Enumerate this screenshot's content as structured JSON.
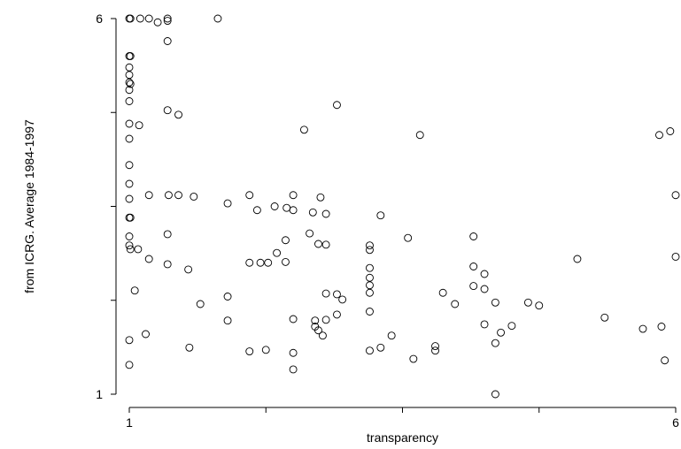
{
  "chart_data": {
    "type": "scatter",
    "title": "",
    "xlabel": "transparency",
    "ylabel": "from ICRG. Average 1984-1997",
    "xlim": [
      1,
      6
    ],
    "ylim": [
      1,
      6
    ],
    "x_tick_labels": [
      "1",
      "",
      "",
      "",
      "6"
    ],
    "x_tick_values": [
      1,
      2.25,
      3.5,
      4.75,
      6
    ],
    "y_tick_labels": [
      "1",
      "",
      "",
      "",
      "6"
    ],
    "y_tick_values": [
      1,
      2.25,
      3.5,
      4.75,
      6
    ],
    "grid": false,
    "legend": "none",
    "marker": "hollow-circle",
    "points": [
      [
        1,
        6
      ],
      [
        1.01,
        6
      ],
      [
        1.1,
        6
      ],
      [
        1.18,
        6
      ],
      [
        1.26,
        5.95
      ],
      [
        1.35,
        6
      ],
      [
        1.35,
        5.97
      ],
      [
        1.35,
        5.7
      ],
      [
        1.81,
        6
      ],
      [
        1,
        5.5
      ],
      [
        1.01,
        5.5
      ],
      [
        1,
        5.35
      ],
      [
        1,
        5.25
      ],
      [
        1,
        5.15
      ],
      [
        1.01,
        5.13
      ],
      [
        1,
        5.05
      ],
      [
        1,
        4.9
      ],
      [
        1,
        4.6
      ],
      [
        1,
        4.4
      ],
      [
        1.09,
        4.58
      ],
      [
        1.35,
        4.78
      ],
      [
        1.45,
        4.72
      ],
      [
        1,
        4.05
      ],
      [
        1,
        3.8
      ],
      [
        1,
        3.6
      ],
      [
        1,
        3.35
      ],
      [
        1.01,
        3.35
      ],
      [
        1,
        3.1
      ],
      [
        1,
        2.98
      ],
      [
        1.01,
        2.93
      ],
      [
        1.08,
        2.93
      ],
      [
        1.18,
        2.8
      ],
      [
        1.18,
        3.65
      ],
      [
        1.36,
        3.65
      ],
      [
        1.45,
        3.65
      ],
      [
        1.59,
        3.63
      ],
      [
        1.35,
        3.13
      ],
      [
        1.35,
        2.73
      ],
      [
        1.54,
        2.66
      ],
      [
        1.9,
        3.54
      ],
      [
        2.1,
        3.65
      ],
      [
        2.17,
        3.45
      ],
      [
        2.33,
        3.5
      ],
      [
        2.44,
        3.48
      ],
      [
        2.5,
        3.45
      ],
      [
        2.5,
        3.65
      ],
      [
        2.6,
        4.52
      ],
      [
        2.65,
        3.14
      ],
      [
        2.68,
        3.42
      ],
      [
        2.8,
        3.4
      ],
      [
        2.9,
        4.85
      ],
      [
        2.75,
        3.62
      ],
      [
        2.1,
        2.75
      ],
      [
        2.2,
        2.75
      ],
      [
        2.27,
        2.75
      ],
      [
        2.35,
        2.88
      ],
      [
        2.43,
        3.05
      ],
      [
        2.43,
        2.76
      ],
      [
        1.9,
        2.3
      ],
      [
        1.9,
        1.98
      ],
      [
        2.73,
        3.0
      ],
      [
        2.8,
        2.99
      ],
      [
        2.8,
        2.34
      ],
      [
        2.9,
        2.33
      ],
      [
        2.95,
        2.26
      ],
      [
        3.2,
        2.98
      ],
      [
        3.2,
        2.92
      ],
      [
        3.2,
        2.68
      ],
      [
        3.2,
        2.55
      ],
      [
        3.2,
        2.45
      ],
      [
        3.2,
        2.35
      ],
      [
        3.3,
        3.38
      ],
      [
        3.55,
        3.08
      ],
      [
        3.66,
        4.45
      ],
      [
        3.2,
        2.1
      ],
      [
        2.9,
        2.06
      ],
      [
        2.8,
        1.99
      ],
      [
        2.7,
        1.98
      ],
      [
        2.7,
        1.9
      ],
      [
        2.73,
        1.85
      ],
      [
        2.77,
        1.78
      ],
      [
        2.5,
        2
      ],
      [
        3.4,
        1.78
      ],
      [
        1.15,
        1.8
      ],
      [
        1.05,
        2.38
      ],
      [
        1.65,
        2.2
      ],
      [
        2.1,
        1.57
      ],
      [
        2.25,
        1.59
      ],
      [
        2.5,
        1.55
      ],
      [
        3.3,
        1.62
      ],
      [
        3.2,
        1.58
      ],
      [
        3.6,
        1.47
      ],
      [
        3.8,
        1.64
      ],
      [
        3.8,
        1.58
      ],
      [
        1.55,
        1.62
      ],
      [
        1,
        1.72
      ],
      [
        1,
        1.39
      ],
      [
        2.5,
        1.33
      ],
      [
        3.87,
        2.35
      ],
      [
        3.98,
        2.2
      ],
      [
        4.15,
        2.7
      ],
      [
        4.15,
        2.44
      ],
      [
        4.25,
        2.6
      ],
      [
        4.25,
        2.4
      ],
      [
        4.35,
        2.22
      ],
      [
        4.4,
        1.82
      ],
      [
        4.5,
        1.91
      ],
      [
        4.65,
        2.22
      ],
      [
        4.75,
        2.18
      ],
      [
        5.1,
        2.8
      ],
      [
        4.15,
        3.1
      ],
      [
        4.25,
        1.93
      ],
      [
        4.35,
        1.68
      ],
      [
        4.35,
        1
      ],
      [
        5.35,
        2.02
      ],
      [
        5.7,
        1.87
      ],
      [
        5.9,
        1.45
      ],
      [
        6,
        2.83
      ],
      [
        5.87,
        1.9
      ],
      [
        5.95,
        4.5
      ],
      [
        5.85,
        4.45
      ],
      [
        6.1,
        3.65
      ]
    ]
  }
}
